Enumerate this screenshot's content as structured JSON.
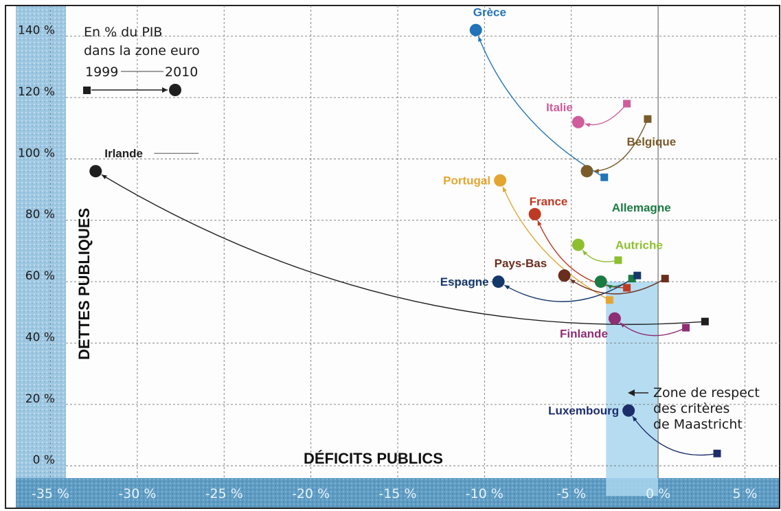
{
  "chart_data": {
    "type": "scatter",
    "subtitle": [
      "En % du PIB",
      "dans la zone euro"
    ],
    "legend": {
      "start_label": "1999",
      "end_label": "2010"
    },
    "xlabel": "DÉFICITS PUBLICS",
    "ylabel": "DETTES PUBLIQUES",
    "xlim": [
      -37,
      7
    ],
    "ylim": [
      -4,
      150
    ],
    "x_ticks": [
      "-35 %",
      "-30 %",
      "-25 %",
      "-20 %",
      "-15 %",
      "-10 %",
      "-5 %",
      "0 %",
      "5 %"
    ],
    "x_tick_values": [
      -35,
      -30,
      -25,
      -20,
      -15,
      -10,
      -5,
      0,
      5
    ],
    "y_ticks": [
      "0 %",
      "20 %",
      "40 %",
      "60 %",
      "80 %",
      "100 %",
      "120 %",
      "140 %"
    ],
    "y_tick_values": [
      0,
      20,
      40,
      60,
      80,
      100,
      120,
      140
    ],
    "grid": true,
    "zone_annotation": [
      "Zone de respect",
      "des critères",
      "de Maastricht"
    ],
    "zone": {
      "x": [
        -3,
        0
      ],
      "y": [
        0,
        60
      ]
    },
    "series": [
      {
        "name": "Grèce",
        "color": "#2274b8",
        "x1999": -3.1,
        "y1999": 94,
        "x2010": -10.5,
        "y2010": 142,
        "label_pos": "above"
      },
      {
        "name": "Italie",
        "color": "#cf5d9b",
        "x1999": -1.8,
        "y1999": 118,
        "x2010": -4.6,
        "y2010": 112,
        "label_pos": "above-left"
      },
      {
        "name": "Belgique",
        "color": "#7a5b2a",
        "x1999": -0.6,
        "y1999": 113,
        "x2010": -4.1,
        "y2010": 96,
        "label_pos": "right"
      },
      {
        "name": "Irlande",
        "color": "#1f1f1f",
        "x1999": 2.7,
        "y1999": 47,
        "x2010": -32.4,
        "y2010": 96,
        "label_pos": "above-right"
      },
      {
        "name": "Portugal",
        "color": "#e5a531",
        "x1999": -2.8,
        "y1999": 54,
        "x2010": -9.1,
        "y2010": 93,
        "label_pos": "left"
      },
      {
        "name": "France",
        "color": "#bf3a23",
        "x1999": -1.8,
        "y1999": 58,
        "x2010": -7.1,
        "y2010": 82,
        "label_pos": "above-right"
      },
      {
        "name": "Allemagne",
        "color": "#1c7b43",
        "x1999": -1.5,
        "y1999": 61,
        "x2010": -3.3,
        "y2010": 60,
        "label_pos": "above-right"
      },
      {
        "name": "Autriche",
        "color": "#8dbf2f",
        "x1999": -2.3,
        "y1999": 67,
        "x2010": -4.6,
        "y2010": 72,
        "label_pos": "right"
      },
      {
        "name": "Pays-Bas",
        "color": "#6a2e1e",
        "x1999": 0.4,
        "y1999": 61,
        "x2010": -5.4,
        "y2010": 62,
        "label_pos": "above-left"
      },
      {
        "name": "Espagne",
        "color": "#15386b",
        "x1999": -1.2,
        "y1999": 62,
        "x2010": -9.2,
        "y2010": 60,
        "label_pos": "left"
      },
      {
        "name": "Finlande",
        "color": "#8e2e74",
        "x1999": 1.6,
        "y1999": 45,
        "x2010": -2.5,
        "y2010": 48,
        "label_pos": "below-left"
      },
      {
        "name": "Luxembourg",
        "color": "#1d2d6b",
        "x1999": 3.4,
        "y1999": 4,
        "x2010": -1.7,
        "y2010": 18,
        "label_pos": "left"
      }
    ]
  }
}
